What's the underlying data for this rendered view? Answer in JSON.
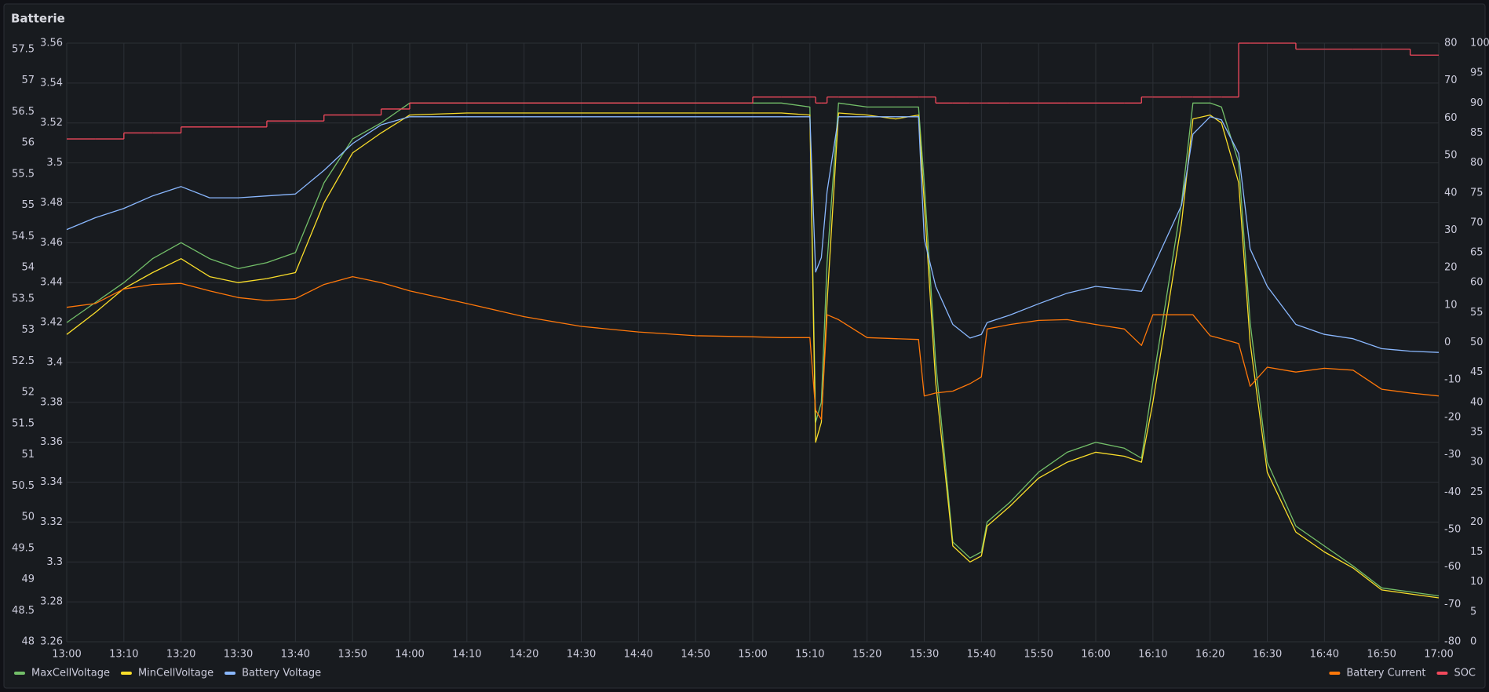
{
  "chart_data": {
    "type": "line",
    "title": "Batterie",
    "x": [
      "13:00",
      "13:05",
      "13:10",
      "13:15",
      "13:20",
      "13:25",
      "13:30",
      "13:35",
      "13:40",
      "13:45",
      "13:50",
      "13:55",
      "14:00",
      "14:10",
      "14:20",
      "14:30",
      "14:40",
      "14:50",
      "15:00",
      "15:05",
      "15:10",
      "15:11",
      "15:12",
      "15:13",
      "15:15",
      "15:20",
      "15:25",
      "15:29",
      "15:30",
      "15:32",
      "15:35",
      "15:38",
      "15:40",
      "15:41",
      "15:45",
      "15:50",
      "15:55",
      "16:00",
      "16:05",
      "16:08",
      "16:10",
      "16:15",
      "16:17",
      "16:20",
      "16:22",
      "16:25",
      "16:27",
      "16:30",
      "16:35",
      "16:40",
      "16:45",
      "16:50",
      "16:55",
      "17:00"
    ],
    "xlim": [
      "13:00",
      "17:00"
    ],
    "xticks": [
      "13:00",
      "13:10",
      "13:20",
      "13:30",
      "13:40",
      "13:50",
      "14:00",
      "14:10",
      "14:20",
      "14:30",
      "14:40",
      "14:50",
      "15:00",
      "15:10",
      "15:20",
      "15:30",
      "15:40",
      "15:50",
      "16:00",
      "16:10",
      "16:20",
      "16:30",
      "16:40",
      "16:50",
      "17:00"
    ],
    "grid": true,
    "axes": [
      {
        "side": "left",
        "ylim": [
          48,
          57.6
        ],
        "yticks": [
          48,
          48.5,
          49,
          49.5,
          50,
          50.5,
          51,
          51.5,
          52,
          52.5,
          53,
          53.5,
          54,
          54.5,
          55,
          55.5,
          56,
          56.5,
          57,
          57.5
        ]
      },
      {
        "side": "left",
        "ylim": [
          3.26,
          3.56
        ],
        "yticks": [
          3.26,
          3.28,
          3.3,
          3.32,
          3.34,
          3.36,
          3.38,
          3.4,
          3.42,
          3.44,
          3.46,
          3.48,
          3.5,
          3.52,
          3.54,
          3.56
        ]
      },
      {
        "side": "right",
        "ylim": [
          -80,
          80
        ],
        "yticks": [
          -80,
          -70,
          -60,
          -50,
          -40,
          -30,
          -20,
          -10,
          0,
          10,
          20,
          30,
          40,
          50,
          60,
          70,
          80
        ]
      },
      {
        "side": "right",
        "ylim": [
          0,
          100
        ],
        "yticks": [
          0,
          5,
          10,
          15,
          20,
          25,
          30,
          35,
          40,
          45,
          50,
          55,
          60,
          65,
          70,
          75,
          80,
          85,
          90,
          95,
          100
        ]
      }
    ],
    "series": [
      {
        "name": "MaxCellVoltage",
        "color": "#73bf69",
        "axis": 1,
        "legend": "left",
        "values": [
          3.42,
          3.43,
          3.44,
          3.452,
          3.46,
          3.452,
          3.447,
          3.45,
          3.455,
          3.49,
          3.512,
          3.52,
          3.53,
          3.53,
          3.53,
          3.53,
          3.53,
          3.53,
          3.53,
          3.53,
          3.528,
          3.37,
          3.38,
          3.45,
          3.53,
          3.528,
          3.528,
          3.528,
          3.49,
          3.4,
          3.31,
          3.302,
          3.305,
          3.32,
          3.33,
          3.345,
          3.355,
          3.36,
          3.357,
          3.352,
          3.39,
          3.48,
          3.53,
          3.53,
          3.528,
          3.5,
          3.42,
          3.35,
          3.318,
          3.308,
          3.298,
          3.287,
          3.285,
          3.283
        ]
      },
      {
        "name": "MinCellVoltage",
        "color": "#fade2a",
        "axis": 1,
        "legend": "left",
        "values": [
          3.414,
          3.425,
          3.437,
          3.445,
          3.452,
          3.443,
          3.44,
          3.442,
          3.445,
          3.48,
          3.505,
          3.515,
          3.524,
          3.525,
          3.525,
          3.525,
          3.525,
          3.525,
          3.525,
          3.525,
          3.524,
          3.36,
          3.37,
          3.43,
          3.525,
          3.524,
          3.522,
          3.524,
          3.48,
          3.39,
          3.308,
          3.3,
          3.303,
          3.318,
          3.328,
          3.342,
          3.35,
          3.355,
          3.353,
          3.35,
          3.38,
          3.47,
          3.522,
          3.524,
          3.52,
          3.49,
          3.41,
          3.345,
          3.315,
          3.305,
          3.297,
          3.286,
          3.284,
          3.282
        ]
      },
      {
        "name": "Battery Voltage",
        "color": "#8ab8ff",
        "axis": 0,
        "legend": "left",
        "values": [
          54.61,
          54.8,
          54.95,
          55.15,
          55.3,
          55.12,
          55.12,
          55.15,
          55.18,
          55.56,
          55.99,
          56.29,
          56.42,
          56.42,
          56.42,
          56.42,
          56.42,
          56.42,
          56.42,
          56.42,
          56.42,
          53.93,
          54.16,
          55.22,
          56.42,
          56.42,
          56.42,
          56.42,
          54.46,
          53.7,
          53.09,
          52.87,
          52.93,
          53.12,
          53.24,
          53.42,
          53.59,
          53.7,
          53.65,
          53.62,
          54,
          55,
          56.14,
          56.42,
          56.37,
          55.83,
          54.3,
          53.7,
          53.09,
          52.93,
          52.86,
          52.7,
          52.66,
          52.64
        ]
      },
      {
        "name": "Battery Current",
        "color": "#ff780a",
        "axis": 2,
        "legend": "right",
        "values": [
          9.4,
          10.4,
          14.3,
          15.5,
          15.8,
          13.8,
          12,
          11.2,
          11.7,
          15.5,
          17.6,
          16,
          13.8,
          10.4,
          6.9,
          4.3,
          2.8,
          1.8,
          1.5,
          1.3,
          1.3,
          -18.1,
          -20.6,
          7.4,
          6.1,
          1.3,
          1,
          0.8,
          -14.3,
          -13.5,
          -13,
          -11,
          -9.2,
          3.6,
          4.8,
          5.9,
          6.1,
          4.8,
          3.6,
          -0.8,
          7.4,
          7.4,
          7.4,
          1.8,
          1,
          -0.3,
          -11.7,
          -6.6,
          -7.9,
          -6.9,
          -7.4,
          -12.5,
          -13.5,
          -14.3
        ]
      },
      {
        "name": "SOC",
        "color": "#f2495c",
        "axis": 3,
        "legend": "right",
        "step": true,
        "values": [
          84,
          84,
          85,
          85,
          86,
          86,
          86,
          87,
          87,
          88,
          88,
          89,
          90,
          90,
          90,
          90,
          90,
          90,
          91,
          91,
          91,
          90,
          90,
          91,
          91,
          91,
          91,
          91,
          91,
          90,
          90,
          90,
          90,
          90,
          90,
          90,
          90,
          90,
          90,
          91,
          91,
          91,
          91,
          91,
          91,
          100,
          100,
          100,
          99,
          99,
          99,
          99,
          98,
          98
        ]
      }
    ]
  }
}
